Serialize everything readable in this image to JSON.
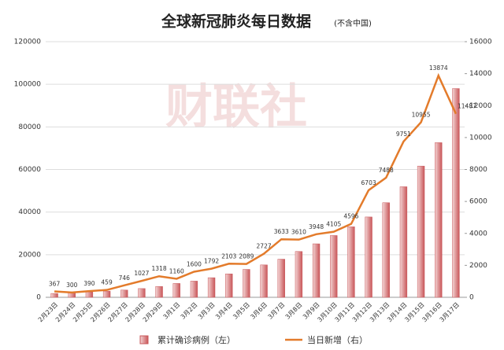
{
  "chart_data": {
    "type": "bar_line",
    "title": "全球新冠肺炎每日数据",
    "subtitle": "(不含中国)",
    "watermark": "财联社",
    "categories": [
      "2月23日",
      "2月24日",
      "2月25日",
      "2月26日",
      "2月27日",
      "2月28日",
      "2月29日",
      "3月1日",
      "3月2日",
      "3月3日",
      "3月4日",
      "3月5日",
      "3月6日",
      "3月7日",
      "3月8日",
      "3月9日",
      "3月10日",
      "3月11日",
      "3月12日",
      "3月13日",
      "3月14日",
      "3月15日",
      "3月16日",
      "3月17日"
    ],
    "series": [
      {
        "name": "累计确诊病例（左）",
        "type": "bar",
        "color": "#c9575a",
        "axis": "y",
        "values": [
          1800,
          2200,
          2500,
          2900,
          3400,
          4100,
          5100,
          6500,
          7600,
          9200,
          11000,
          13100,
          15200,
          17900,
          21500,
          25100,
          29000,
          33100,
          37700,
          44400,
          51900,
          61600,
          72600,
          98000
        ]
      },
      {
        "name": "当日新增（右）",
        "type": "line",
        "color": "#e37b2b",
        "axis": "y2",
        "values": [
          367,
          300,
          390,
          459,
          746,
          1027,
          1318,
          1160,
          1600,
          1792,
          2103,
          2089,
          2727,
          3633,
          3610,
          3948,
          4105,
          4596,
          6703,
          7488,
          9751,
          10955,
          13874,
          11487
        ]
      }
    ],
    "ylim": [
      0,
      120000
    ],
    "yticks": [
      0,
      20000,
      40000,
      60000,
      80000,
      100000,
      120000
    ],
    "y2lim": [
      0,
      16000
    ],
    "y2ticks": [
      0,
      2000,
      4000,
      6000,
      8000,
      10000,
      12000,
      14000,
      16000
    ],
    "grid": true
  }
}
